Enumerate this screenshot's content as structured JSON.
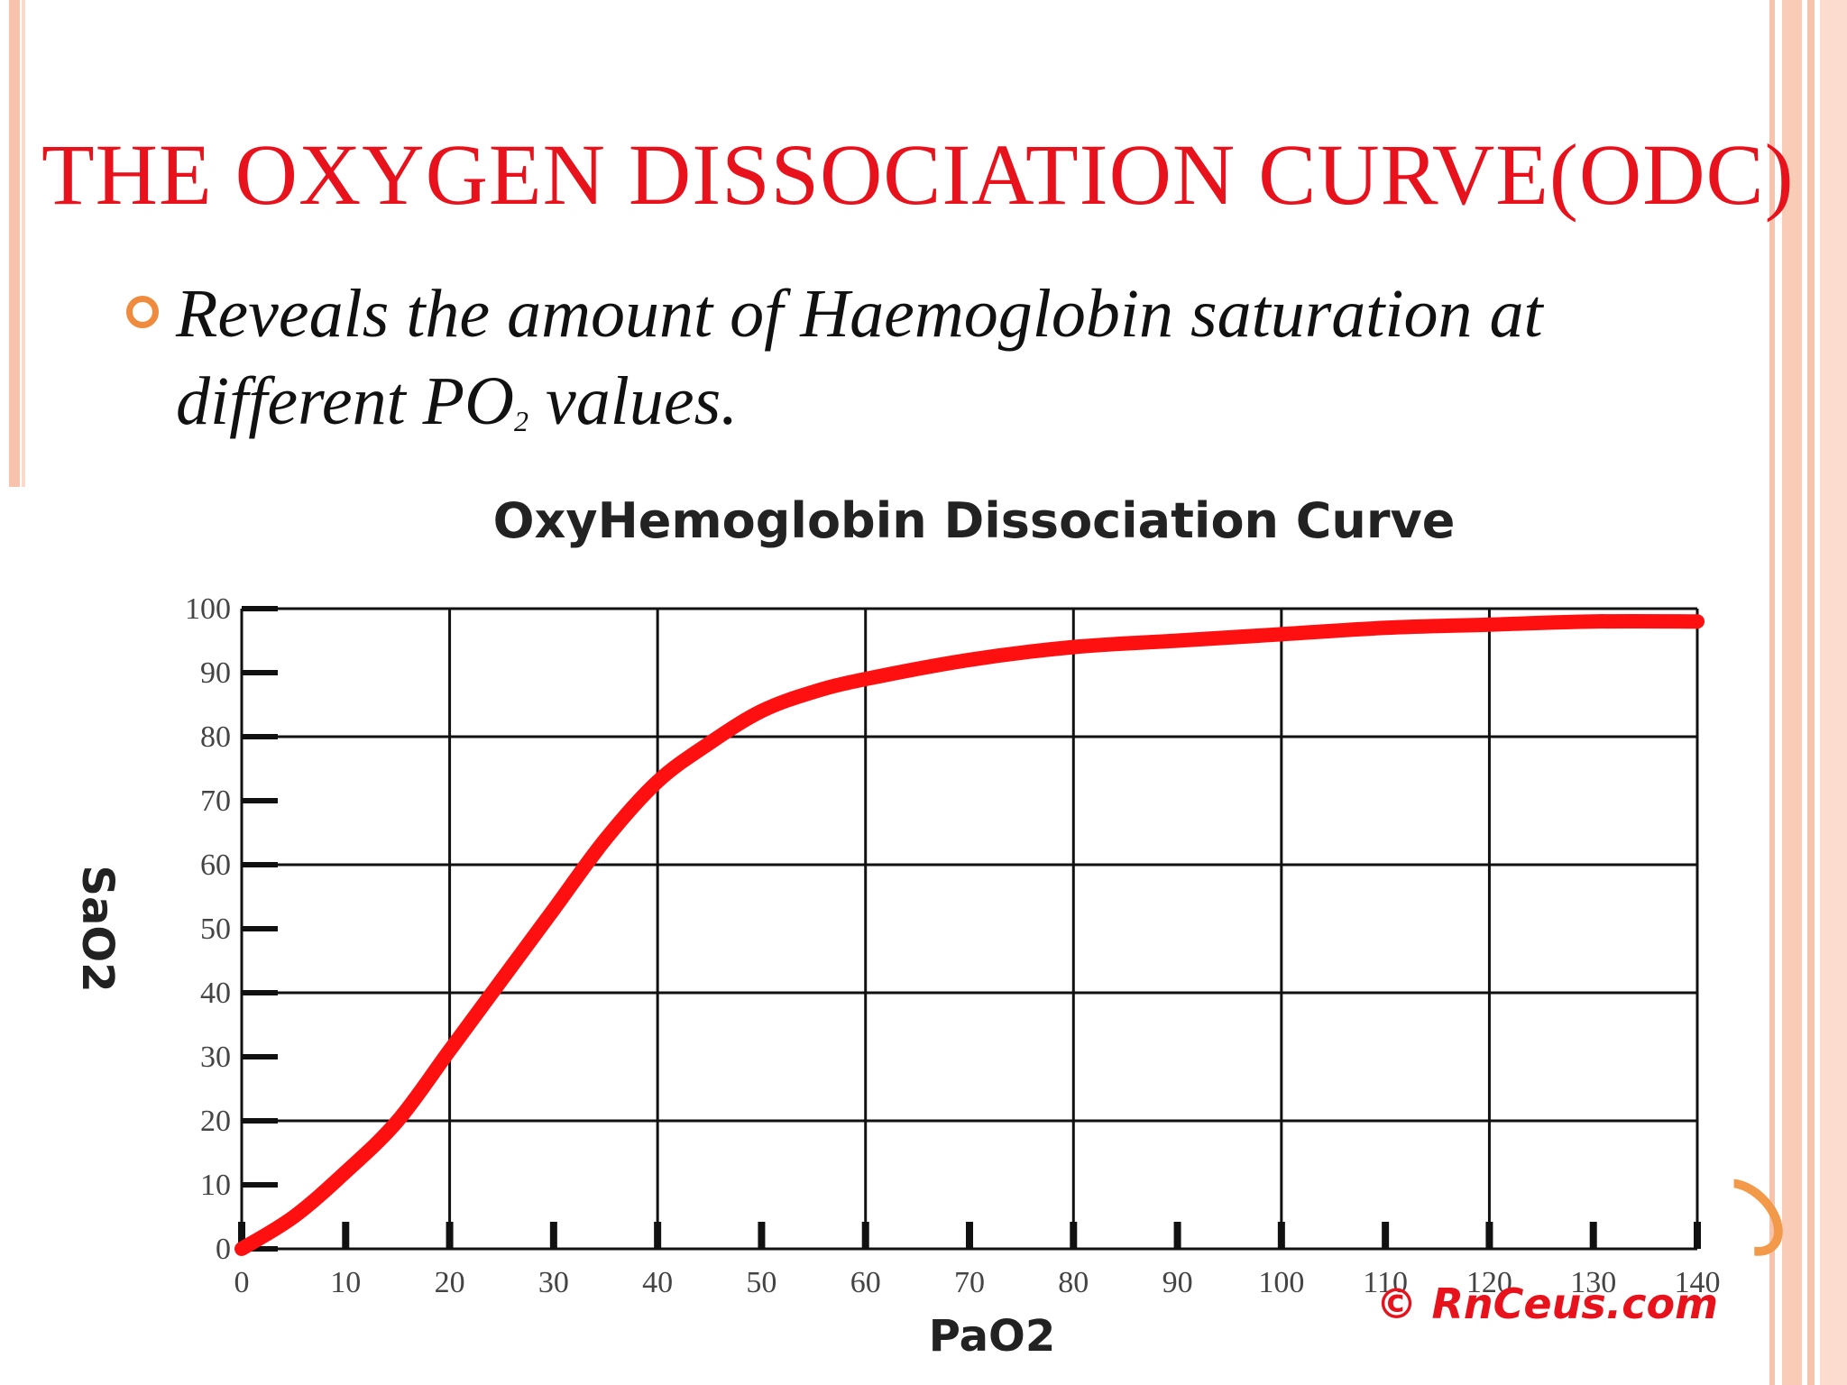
{
  "slide": {
    "title": "THE OXYGEN DISSOCIATION CURVE(ODC)",
    "bullet_text_before": "Reveals the amount of Haemoglobin saturation at different PO",
    "bullet_subscript": "2",
    "bullet_text_after": " values."
  },
  "colors": {
    "title": "#e8121c",
    "curve": "#ff1010",
    "grid": "#111111",
    "bullet": "#f08a3c"
  },
  "chart_data": {
    "type": "line",
    "title": "OxyHemoglobin Dissociation Curve",
    "xlabel": "PaO2",
    "ylabel": "SaO2",
    "xlim": [
      0,
      140
    ],
    "ylim": [
      0,
      100
    ],
    "x_ticks": [
      "0",
      "10",
      "20",
      "30",
      "40",
      "50",
      "60",
      "70",
      "80",
      "90",
      "100",
      "110",
      "120",
      "130",
      "140"
    ],
    "y_ticks": [
      "0",
      "10",
      "20",
      "30",
      "40",
      "50",
      "60",
      "70",
      "80",
      "90",
      "100"
    ],
    "grid": true,
    "credit": "© RnCeus.com",
    "series": [
      {
        "x": [
          0,
          5,
          10,
          15,
          20,
          25,
          30,
          35,
          40,
          45,
          50,
          55,
          60,
          70,
          80,
          90,
          100,
          110,
          120,
          130,
          140
        ],
        "values": [
          0,
          5,
          12,
          20,
          31,
          42,
          53,
          64,
          73,
          79,
          84,
          87,
          89,
          92,
          94,
          95,
          96,
          97,
          97.5,
          98,
          98
        ]
      }
    ]
  }
}
